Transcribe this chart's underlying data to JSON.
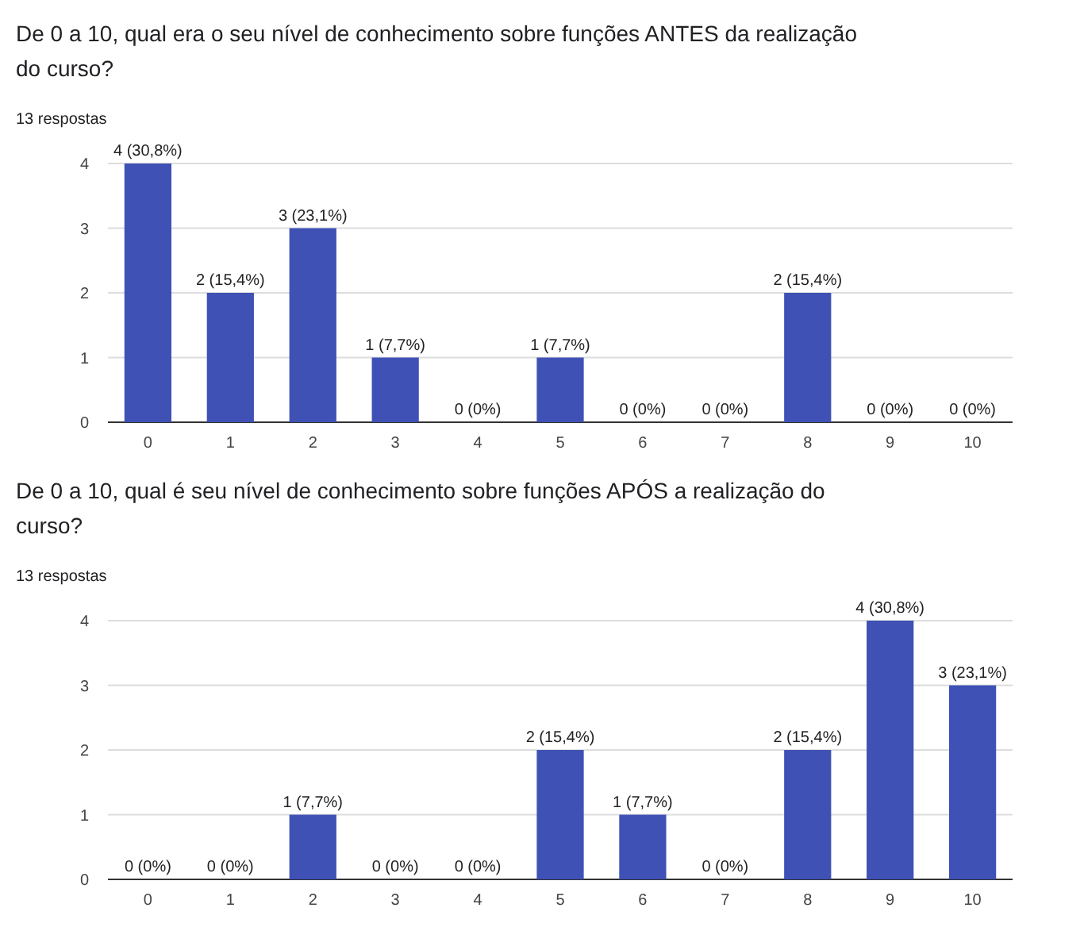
{
  "chart_data": [
    {
      "type": "bar",
      "title": "De 0 a 10, qual era o seu nível de conhecimento sobre funções ANTES da realização do curso?",
      "subtitle": "13 respostas",
      "categories": [
        "0",
        "1",
        "2",
        "3",
        "4",
        "5",
        "6",
        "7",
        "8",
        "9",
        "10"
      ],
      "values": [
        4,
        2,
        3,
        1,
        0,
        1,
        0,
        0,
        2,
        0,
        0
      ],
      "value_labels": [
        "4 (30,8%)",
        "2 (15,4%)",
        "3 (23,1%)",
        "1 (7,7%)",
        "0 (0%)",
        "1 (7,7%)",
        "0 (0%)",
        "0 (0%)",
        "2 (15,4%)",
        "0 (0%)",
        "0 (0%)"
      ],
      "color": "#3f51b5",
      "ylim": [
        0,
        4
      ],
      "yticks": [
        0,
        1,
        2,
        3,
        4
      ],
      "grid": "y"
    },
    {
      "type": "bar",
      "title": "De 0 a 10, qual é seu nível de conhecimento sobre funções APÓS a realização do curso?",
      "subtitle": "13 respostas",
      "categories": [
        "0",
        "1",
        "2",
        "3",
        "4",
        "5",
        "6",
        "7",
        "8",
        "9",
        "10"
      ],
      "values": [
        0,
        0,
        1,
        0,
        0,
        2,
        1,
        0,
        2,
        4,
        3
      ],
      "value_labels": [
        "0 (0%)",
        "0 (0%)",
        "1 (7,7%)",
        "0 (0%)",
        "0 (0%)",
        "2 (15,4%)",
        "1 (7,7%)",
        "0 (0%)",
        "2 (15,4%)",
        "4 (30,8%)",
        "3 (23,1%)"
      ],
      "color": "#3f51b5",
      "ylim": [
        0,
        4
      ],
      "yticks": [
        0,
        1,
        2,
        3,
        4
      ],
      "grid": "y"
    }
  ]
}
